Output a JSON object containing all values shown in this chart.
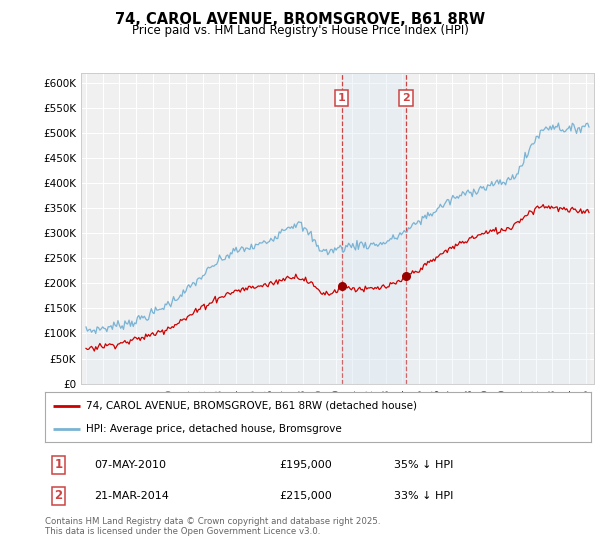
{
  "title": "74, CAROL AVENUE, BROMSGROVE, B61 8RW",
  "subtitle": "Price paid vs. HM Land Registry's House Price Index (HPI)",
  "ylim": [
    0,
    620000
  ],
  "yticks": [
    0,
    50000,
    100000,
    150000,
    200000,
    250000,
    300000,
    350000,
    400000,
    450000,
    500000,
    550000,
    600000
  ],
  "x_start_year": 1995,
  "x_end_year": 2025,
  "red_color": "#cc0000",
  "blue_color": "#7ab3d4",
  "blue_fill_color": "#daeaf4",
  "marker_color": "#990000",
  "vline_color": "#cc4444",
  "shade_color": "#daeaf4",
  "legend_entries": [
    "74, CAROL AVENUE, BROMSGROVE, B61 8RW (detached house)",
    "HPI: Average price, detached house, Bromsgrove"
  ],
  "sale1_label": "1",
  "sale1_date": "07-MAY-2010",
  "sale1_price": "£195,000",
  "sale1_hpi": "35% ↓ HPI",
  "sale1_year": 2010.36,
  "sale2_label": "2",
  "sale2_date": "21-MAR-2014",
  "sale2_price": "£215,000",
  "sale2_hpi": "33% ↓ HPI",
  "sale2_year": 2014.22,
  "footnote": "Contains HM Land Registry data © Crown copyright and database right 2025.\nThis data is licensed under the Open Government Licence v3.0.",
  "background_color": "#ffffff",
  "plot_bg_color": "#f0f0f0"
}
